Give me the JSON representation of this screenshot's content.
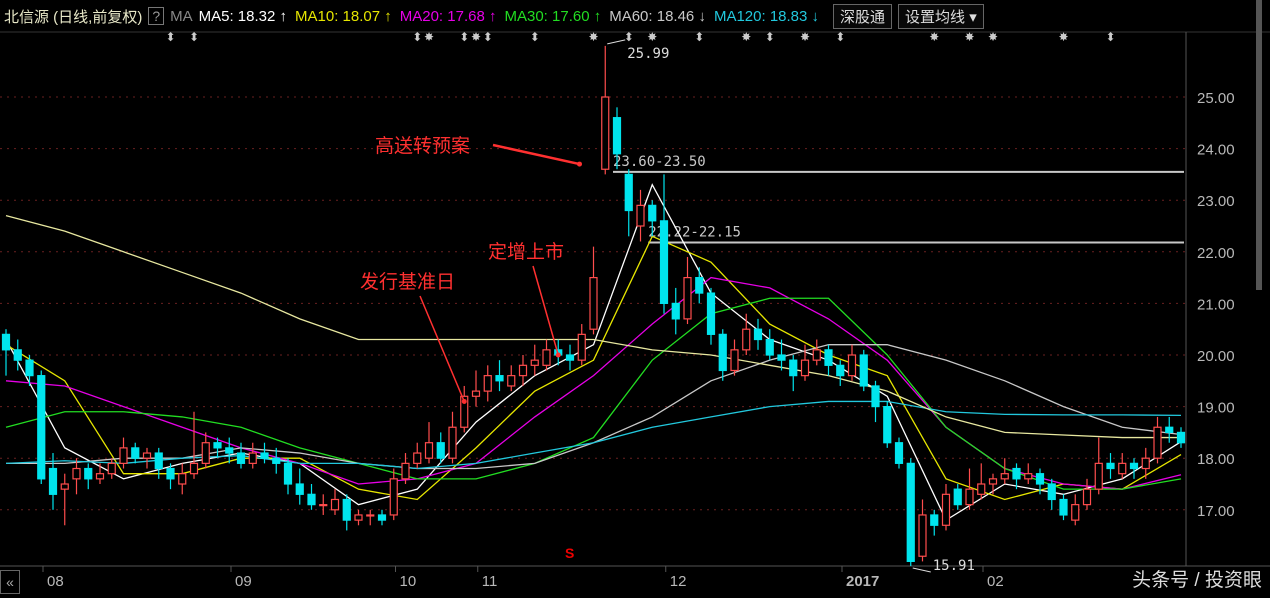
{
  "header": {
    "title": "北信源 (日线,前复权)",
    "help": "?",
    "ma_label": "MA",
    "ma_readouts": [
      {
        "text": "MA5: 18.32 ↑",
        "color": "#ffffff"
      },
      {
        "text": "MA10: 18.07 ↑",
        "color": "#e6e600"
      },
      {
        "text": "MA20: 17.68 ↑",
        "color": "#e600e6"
      },
      {
        "text": "MA30: 17.60 ↑",
        "color": "#22dd22"
      },
      {
        "text": "MA60: 18.46 ↓",
        "color": "#c8c8c8"
      },
      {
        "text": "MA120: 18.83 ↓",
        "color": "#22c8dd"
      }
    ],
    "button_sgt": "深股通",
    "button_ma_settings": "设置均线 ▾"
  },
  "colors": {
    "up": "#ff4d4d",
    "down": "#00e5ee",
    "grid": "#6a2020",
    "annotation": "#ff3030"
  },
  "chart_data": {
    "type": "candlestick",
    "ylim": [
      15.8,
      26.2
    ],
    "yticks": [
      "25.00",
      "24.00",
      "23.00",
      "22.00",
      "21.00",
      "20.00",
      "19.00",
      "18.00",
      "17.00"
    ],
    "xtick_labels": [
      {
        "label": "08",
        "index": 4
      },
      {
        "label": "09",
        "index": 20
      },
      {
        "label": "10",
        "index": 34
      },
      {
        "label": "11",
        "index": 41
      },
      {
        "label": "12",
        "index": 57
      },
      {
        "label": "2017",
        "index": 72
      },
      {
        "label": "02",
        "index": 84
      }
    ],
    "candles": [
      [
        20.4,
        20.5,
        19.6,
        20.1
      ],
      [
        20.1,
        20.3,
        19.7,
        19.9
      ],
      [
        19.9,
        20.0,
        19.4,
        19.6
      ],
      [
        19.6,
        19.7,
        17.5,
        17.6
      ],
      [
        17.8,
        18.1,
        17.0,
        17.3
      ],
      [
        17.4,
        17.7,
        16.7,
        17.5
      ],
      [
        17.6,
        18.0,
        17.3,
        17.8
      ],
      [
        17.8,
        17.9,
        17.4,
        17.6
      ],
      [
        17.6,
        17.9,
        17.5,
        17.7
      ],
      [
        17.7,
        18.0,
        17.6,
        17.9
      ],
      [
        17.9,
        18.4,
        17.8,
        18.2
      ],
      [
        18.2,
        18.3,
        17.9,
        18.0
      ],
      [
        18.0,
        18.2,
        17.8,
        18.1
      ],
      [
        18.1,
        18.2,
        17.6,
        17.8
      ],
      [
        17.8,
        17.9,
        17.4,
        17.6
      ],
      [
        17.5,
        17.9,
        17.3,
        17.7
      ],
      [
        17.7,
        18.9,
        17.6,
        17.9
      ],
      [
        17.9,
        18.5,
        17.8,
        18.3
      ],
      [
        18.3,
        18.4,
        18.0,
        18.2
      ],
      [
        18.2,
        18.4,
        17.9,
        18.1
      ],
      [
        18.1,
        18.3,
        17.8,
        17.9
      ],
      [
        17.9,
        18.3,
        17.8,
        18.1
      ],
      [
        18.1,
        18.3,
        17.9,
        18.0
      ],
      [
        18.0,
        18.2,
        17.7,
        17.9
      ],
      [
        17.9,
        18.0,
        17.3,
        17.5
      ],
      [
        17.5,
        17.8,
        17.1,
        17.3
      ],
      [
        17.3,
        17.5,
        17.0,
        17.1
      ],
      [
        17.1,
        17.3,
        16.9,
        17.1
      ],
      [
        17.0,
        17.4,
        16.9,
        17.2
      ],
      [
        17.2,
        17.3,
        16.6,
        16.8
      ],
      [
        16.8,
        17.0,
        16.7,
        16.9
      ],
      [
        16.9,
        17.0,
        16.7,
        16.9
      ],
      [
        16.9,
        17.0,
        16.7,
        16.8
      ],
      [
        16.9,
        17.8,
        16.8,
        17.6
      ],
      [
        17.6,
        18.1,
        17.5,
        17.9
      ],
      [
        17.9,
        18.3,
        17.8,
        18.1
      ],
      [
        18.0,
        18.7,
        17.9,
        18.3
      ],
      [
        18.3,
        18.5,
        17.9,
        18.0
      ],
      [
        18.0,
        18.9,
        17.9,
        18.6
      ],
      [
        18.6,
        19.4,
        18.5,
        19.2
      ],
      [
        19.2,
        19.7,
        19.0,
        19.3
      ],
      [
        19.3,
        19.8,
        19.1,
        19.6
      ],
      [
        19.6,
        19.9,
        19.3,
        19.5
      ],
      [
        19.4,
        19.8,
        19.3,
        19.6
      ],
      [
        19.6,
        20.0,
        19.4,
        19.8
      ],
      [
        19.8,
        20.2,
        19.6,
        19.9
      ],
      [
        19.8,
        20.3,
        19.7,
        20.1
      ],
      [
        20.1,
        20.3,
        19.8,
        20.0
      ],
      [
        20.0,
        20.2,
        19.7,
        19.9
      ],
      [
        19.9,
        20.6,
        19.8,
        20.4
      ],
      [
        20.5,
        22.1,
        20.4,
        21.5
      ],
      [
        23.6,
        25.99,
        23.5,
        25.0
      ],
      [
        24.6,
        24.8,
        23.6,
        23.9
      ],
      [
        23.5,
        23.6,
        22.3,
        22.8
      ],
      [
        22.5,
        23.2,
        22.2,
        22.9
      ],
      [
        22.9,
        23.0,
        22.3,
        22.6
      ],
      [
        22.6,
        23.5,
        20.8,
        21.0
      ],
      [
        21.0,
        21.3,
        20.4,
        20.7
      ],
      [
        20.7,
        21.9,
        20.6,
        21.5
      ],
      [
        21.5,
        21.7,
        21.0,
        21.2
      ],
      [
        21.2,
        21.3,
        20.2,
        20.4
      ],
      [
        20.4,
        20.5,
        19.5,
        19.7
      ],
      [
        19.7,
        20.3,
        19.6,
        20.1
      ],
      [
        20.1,
        20.8,
        20.0,
        20.5
      ],
      [
        20.5,
        20.7,
        20.1,
        20.3
      ],
      [
        20.3,
        20.5,
        19.9,
        20.0
      ],
      [
        20.0,
        20.3,
        19.7,
        19.9
      ],
      [
        19.9,
        20.0,
        19.3,
        19.6
      ],
      [
        19.6,
        20.2,
        19.5,
        19.9
      ],
      [
        19.9,
        20.3,
        19.8,
        20.1
      ],
      [
        20.1,
        20.2,
        19.6,
        19.8
      ],
      [
        19.8,
        19.9,
        19.4,
        19.6
      ],
      [
        19.6,
        20.2,
        19.5,
        20.0
      ],
      [
        20.0,
        20.1,
        19.3,
        19.4
      ],
      [
        19.4,
        19.5,
        18.7,
        19.0
      ],
      [
        19.0,
        19.1,
        18.2,
        18.3
      ],
      [
        18.3,
        18.4,
        17.8,
        17.9
      ],
      [
        17.9,
        18.0,
        15.91,
        16.0
      ],
      [
        16.1,
        17.2,
        16.0,
        16.9
      ],
      [
        16.9,
        17.0,
        16.5,
        16.7
      ],
      [
        16.7,
        17.5,
        16.6,
        17.3
      ],
      [
        17.4,
        17.5,
        17.0,
        17.1
      ],
      [
        17.1,
        17.8,
        17.0,
        17.4
      ],
      [
        17.3,
        17.9,
        17.2,
        17.5
      ],
      [
        17.5,
        17.7,
        17.3,
        17.6
      ],
      [
        17.6,
        18.0,
        17.5,
        17.7
      ],
      [
        17.8,
        17.9,
        17.4,
        17.6
      ],
      [
        17.6,
        17.9,
        17.5,
        17.7
      ],
      [
        17.7,
        17.8,
        17.3,
        17.5
      ],
      [
        17.5,
        17.6,
        17.0,
        17.2
      ],
      [
        17.2,
        17.3,
        16.8,
        16.9
      ],
      [
        16.8,
        17.3,
        16.7,
        17.1
      ],
      [
        17.1,
        17.6,
        17.0,
        17.4
      ],
      [
        17.4,
        18.4,
        17.3,
        17.9
      ],
      [
        17.9,
        18.1,
        17.6,
        17.8
      ],
      [
        17.7,
        18.1,
        17.6,
        17.9
      ],
      [
        17.9,
        18.0,
        17.6,
        17.8
      ],
      [
        17.8,
        18.2,
        17.6,
        18.0
      ],
      [
        18.0,
        18.8,
        17.9,
        18.6
      ],
      [
        18.6,
        18.8,
        18.3,
        18.5
      ],
      [
        18.5,
        18.6,
        18.2,
        18.3
      ]
    ],
    "ma_step": 5,
    "ma_series": [
      {
        "name": "MA5",
        "color": "#ffffff",
        "values": [
          20.3,
          18.2,
          17.6,
          17.9,
          18.1,
          17.9,
          17.1,
          17.4,
          18.7,
          19.6,
          20.2,
          23.3,
          21.2,
          20.3,
          19.9,
          19.2,
          16.8,
          17.5,
          17.3,
          17.6,
          18.32
        ]
      },
      {
        "name": "MA10",
        "color": "#e6e600",
        "values": [
          20.2,
          19.5,
          17.7,
          17.7,
          18.0,
          18.0,
          17.4,
          17.2,
          18.2,
          19.3,
          19.9,
          22.3,
          21.8,
          20.6,
          20.0,
          19.6,
          17.6,
          17.2,
          17.5,
          17.4,
          18.07
        ]
      },
      {
        "name": "MA20",
        "color": "#e600e6",
        "values": [
          19.5,
          19.4,
          19.0,
          18.6,
          18.2,
          17.9,
          17.5,
          17.6,
          17.9,
          18.8,
          19.6,
          20.6,
          21.5,
          21.3,
          20.7,
          19.9,
          18.6,
          17.8,
          17.5,
          17.4,
          17.68
        ]
      },
      {
        "name": "MA30",
        "color": "#22dd22",
        "values": [
          18.6,
          18.9,
          18.9,
          18.8,
          18.6,
          18.2,
          17.9,
          17.6,
          17.6,
          17.9,
          18.4,
          19.9,
          20.8,
          21.1,
          21.1,
          20.0,
          18.6,
          17.8,
          17.4,
          17.4,
          17.6
        ]
      },
      {
        "name": "MA60",
        "color": "#c8c8c8",
        "values": [
          17.9,
          17.9,
          18.0,
          18.0,
          18.2,
          18.1,
          17.9,
          17.8,
          17.8,
          17.9,
          18.3,
          18.8,
          19.5,
          19.9,
          20.2,
          20.2,
          19.9,
          19.5,
          19.0,
          18.6,
          18.46
        ]
      },
      {
        "name": "MA120",
        "color": "#22c8dd",
        "values": [
          17.9,
          17.95,
          17.9,
          18.0,
          18.05,
          17.9,
          17.9,
          17.8,
          17.9,
          18.1,
          18.3,
          18.6,
          18.8,
          19.0,
          19.1,
          19.1,
          18.9,
          18.85,
          18.84,
          18.84,
          18.83
        ]
      },
      {
        "color": "#e8e8a0",
        "values": [
          22.7,
          22.4,
          22.0,
          21.6,
          21.2,
          20.7,
          20.3,
          20.3,
          20.3,
          20.3,
          20.3,
          20.1,
          20.0,
          19.8,
          19.6,
          19.3,
          18.8,
          18.5,
          18.45,
          18.4,
          18.4
        ]
      }
    ],
    "high_label": {
      "text": "25.99",
      "index": 51,
      "price": 25.99
    },
    "low_label": {
      "text": "15.91",
      "index": 77,
      "price": 15.91
    },
    "gap_lines": [
      {
        "text": "23.60-23.50",
        "from_index": 52,
        "price": 23.55
      },
      {
        "text": "22.22-22.15",
        "from_index": 55,
        "price": 22.18
      }
    ],
    "annotations": [
      {
        "text": "高送转预案",
        "target_index": 50,
        "target_price": 23.7
      },
      {
        "text": "定增上市",
        "target_index": 47,
        "target_price": 20.0
      },
      {
        "text": "发行基准日",
        "target_index": 39,
        "target_price": 19.1
      }
    ],
    "signal_marker": {
      "text": "S",
      "index": 48
    },
    "event_markers": [
      {
        "index": 14,
        "type": "updown"
      },
      {
        "index": 16,
        "type": "updown"
      },
      {
        "index": 35,
        "type": "updown"
      },
      {
        "index": 36,
        "type": "star"
      },
      {
        "index": 39,
        "type": "updown"
      },
      {
        "index": 40,
        "type": "star"
      },
      {
        "index": 41,
        "type": "updown"
      },
      {
        "index": 45,
        "type": "updown"
      },
      {
        "index": 50,
        "type": "star"
      },
      {
        "index": 53,
        "type": "updown"
      },
      {
        "index": 55,
        "type": "star"
      },
      {
        "index": 59,
        "type": "updown"
      },
      {
        "index": 63,
        "type": "star"
      },
      {
        "index": 65,
        "type": "updown"
      },
      {
        "index": 68,
        "type": "star"
      },
      {
        "index": 71,
        "type": "updown"
      },
      {
        "index": 79,
        "type": "star"
      },
      {
        "index": 82,
        "type": "star"
      },
      {
        "index": 84,
        "type": "star"
      },
      {
        "index": 90,
        "type": "star"
      },
      {
        "index": 94,
        "type": "updown"
      }
    ]
  },
  "footer": {
    "prev_button": "«",
    "watermark": "头条号 / 投资眼"
  }
}
